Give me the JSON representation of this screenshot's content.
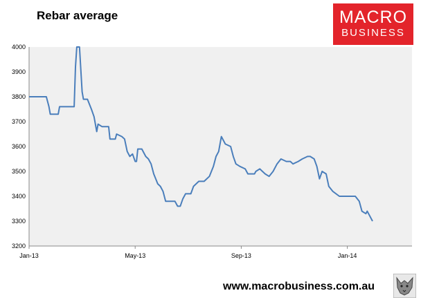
{
  "header": {
    "title": "Rebar average",
    "logo_line1": "MACRO",
    "logo_line2": "BUSINESS"
  },
  "footer": {
    "url": "www.macrobusiness.com.au"
  },
  "colors": {
    "line": "#4a7ebb",
    "plot_bg": "#f0f0f0",
    "logo_bg": "#e3242b"
  },
  "chart_data": {
    "type": "line",
    "title": "Rebar average",
    "xlabel": "",
    "ylabel": "",
    "ylim": [
      3200,
      4000
    ],
    "yticks": [
      4000,
      3900,
      3800,
      3700,
      3600,
      3500,
      3400,
      3300,
      3200
    ],
    "xticks": [
      "Jan-13",
      "May-13",
      "Sep-13",
      "Jan-14"
    ],
    "grid": false,
    "legend": "none",
    "x_range_months": [
      0,
      14.9
    ],
    "series": [
      {
        "values": [
          [
            0,
            3800
          ],
          [
            0.65,
            3800
          ],
          [
            0.75,
            3760
          ],
          [
            0.8,
            3730
          ],
          [
            1.1,
            3730
          ],
          [
            1.15,
            3760
          ],
          [
            1.7,
            3760
          ],
          [
            1.75,
            3920
          ],
          [
            1.8,
            4000
          ],
          [
            1.9,
            4000
          ],
          [
            2.0,
            3820
          ],
          [
            2.05,
            3790
          ],
          [
            2.2,
            3790
          ],
          [
            2.35,
            3750
          ],
          [
            2.45,
            3720
          ],
          [
            2.55,
            3660
          ],
          [
            2.6,
            3690
          ],
          [
            2.75,
            3680
          ],
          [
            3.0,
            3680
          ],
          [
            3.05,
            3630
          ],
          [
            3.25,
            3630
          ],
          [
            3.3,
            3650
          ],
          [
            3.5,
            3640
          ],
          [
            3.6,
            3630
          ],
          [
            3.7,
            3580
          ],
          [
            3.8,
            3560
          ],
          [
            3.9,
            3570
          ],
          [
            4.0,
            3540
          ],
          [
            4.05,
            3540
          ],
          [
            4.1,
            3590
          ],
          [
            4.25,
            3590
          ],
          [
            4.4,
            3560
          ],
          [
            4.5,
            3550
          ],
          [
            4.6,
            3530
          ],
          [
            4.7,
            3490
          ],
          [
            4.85,
            3450
          ],
          [
            4.95,
            3440
          ],
          [
            5.05,
            3420
          ],
          [
            5.15,
            3380
          ],
          [
            5.5,
            3380
          ],
          [
            5.6,
            3360
          ],
          [
            5.7,
            3360
          ],
          [
            5.8,
            3390
          ],
          [
            5.9,
            3410
          ],
          [
            6.1,
            3410
          ],
          [
            6.2,
            3440
          ],
          [
            6.4,
            3460
          ],
          [
            6.6,
            3460
          ],
          [
            6.8,
            3480
          ],
          [
            6.95,
            3520
          ],
          [
            7.05,
            3560
          ],
          [
            7.15,
            3580
          ],
          [
            7.25,
            3640
          ],
          [
            7.4,
            3610
          ],
          [
            7.6,
            3600
          ],
          [
            7.7,
            3560
          ],
          [
            7.8,
            3530
          ],
          [
            7.95,
            3520
          ],
          [
            8.15,
            3510
          ],
          [
            8.25,
            3490
          ],
          [
            8.5,
            3490
          ],
          [
            8.55,
            3500
          ],
          [
            8.7,
            3510
          ],
          [
            8.8,
            3500
          ],
          [
            8.9,
            3490
          ],
          [
            9.05,
            3480
          ],
          [
            9.2,
            3500
          ],
          [
            9.35,
            3530
          ],
          [
            9.5,
            3550
          ],
          [
            9.7,
            3540
          ],
          [
            9.85,
            3540
          ],
          [
            9.95,
            3530
          ],
          [
            10.15,
            3540
          ],
          [
            10.3,
            3550
          ],
          [
            10.5,
            3560
          ],
          [
            10.6,
            3560
          ],
          [
            10.75,
            3550
          ],
          [
            10.85,
            3520
          ],
          [
            10.95,
            3470
          ],
          [
            11.05,
            3500
          ],
          [
            11.2,
            3490
          ],
          [
            11.3,
            3440
          ],
          [
            11.45,
            3420
          ],
          [
            11.7,
            3400
          ],
          [
            12.3,
            3400
          ],
          [
            12.45,
            3380
          ],
          [
            12.55,
            3340
          ],
          [
            12.7,
            3330
          ],
          [
            12.75,
            3340
          ],
          [
            12.85,
            3320
          ],
          [
            12.95,
            3300
          ]
        ]
      }
    ]
  }
}
